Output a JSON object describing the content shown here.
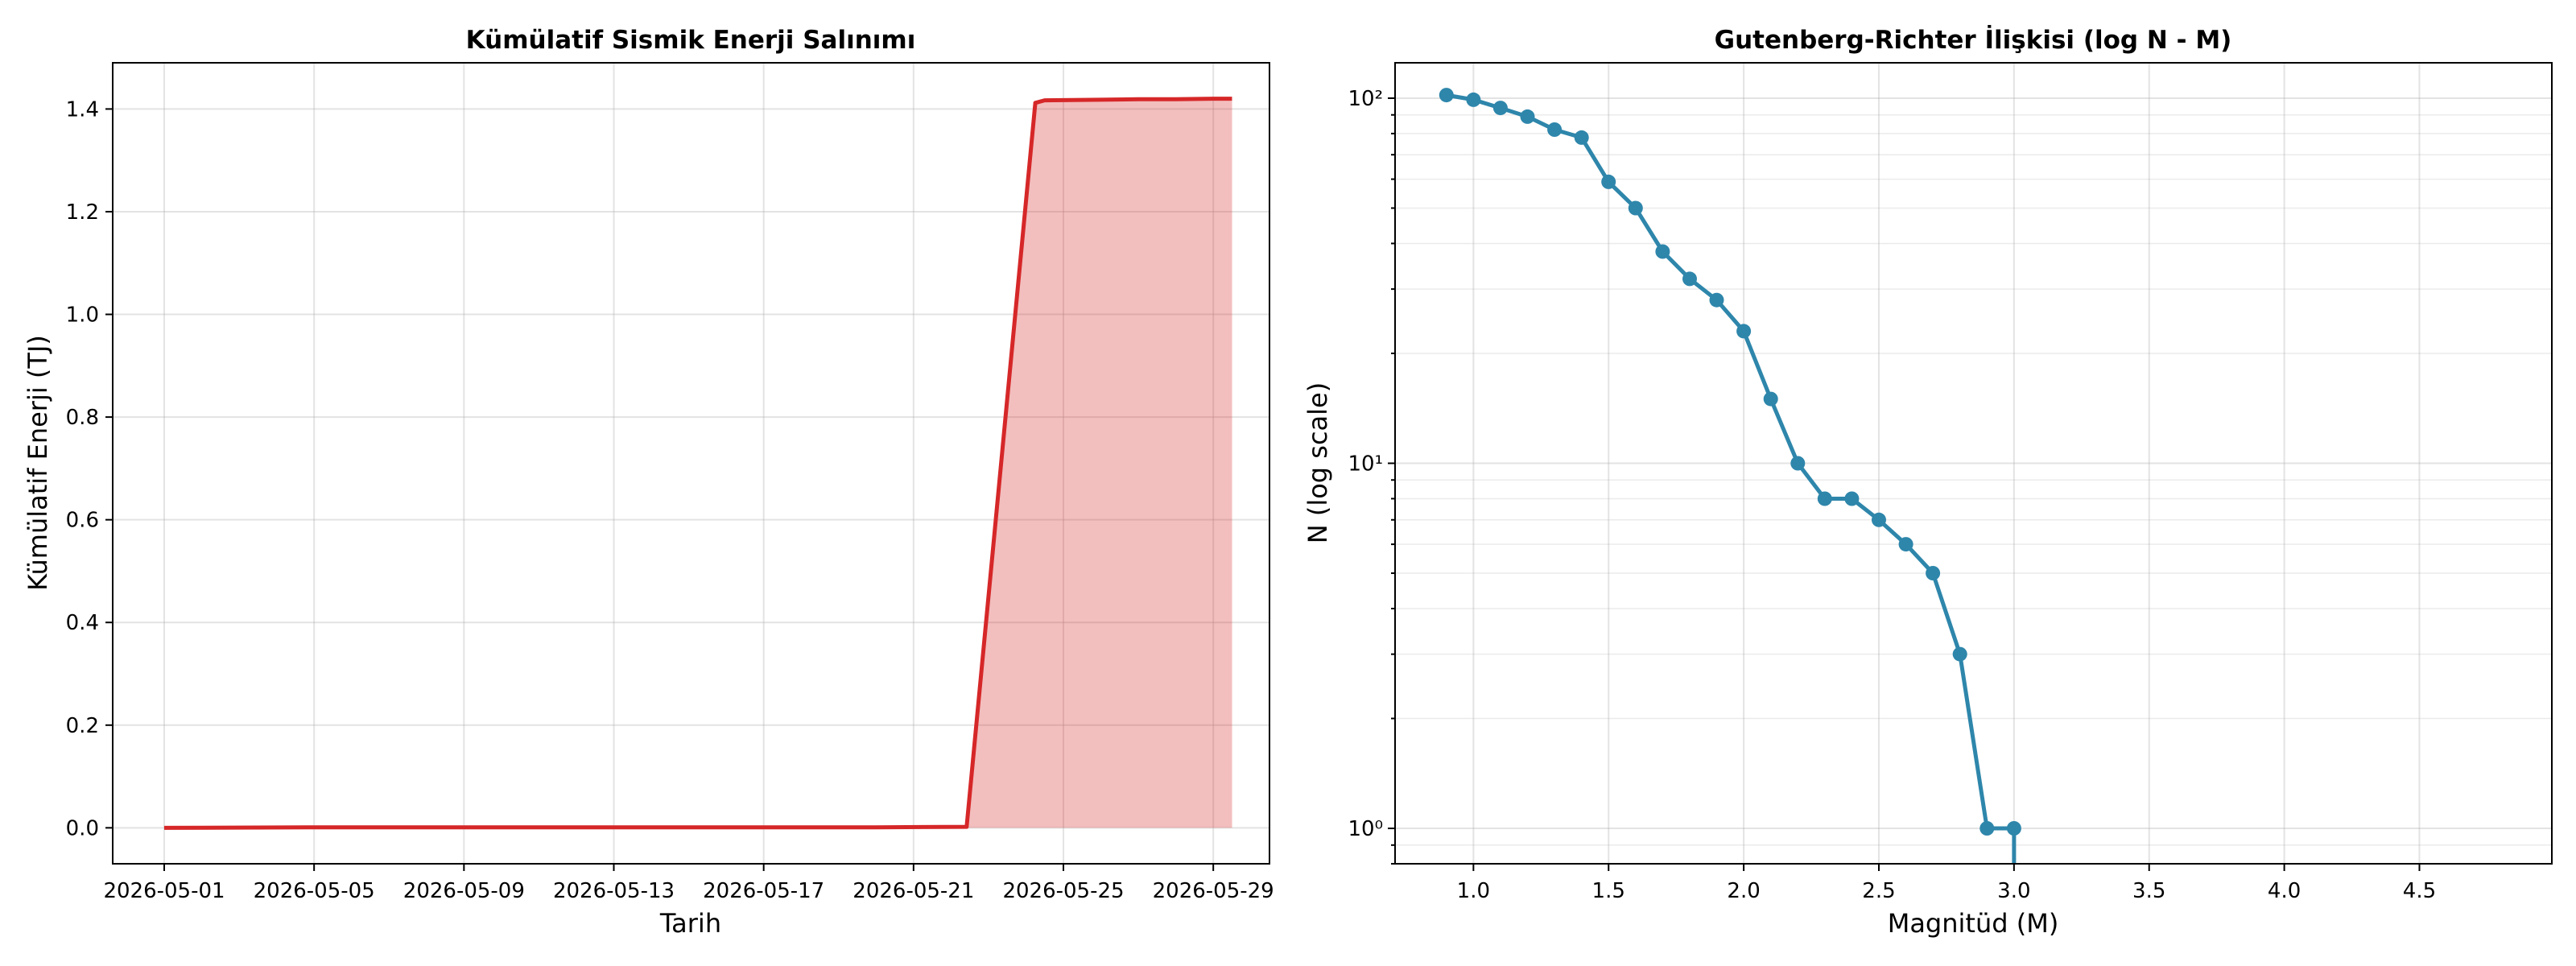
{
  "chart_data": [
    {
      "type": "area",
      "title": "Kümülatif Sismik Enerji Salınımı",
      "xlabel": "Tarih",
      "ylabel": "Kümülatif Enerji (TJ)",
      "x_ticks": [
        "2026-05-01",
        "2026-05-05",
        "2026-05-09",
        "2026-05-13",
        "2026-05-17",
        "2026-05-21",
        "2026-05-25",
        "2026-05-29"
      ],
      "x_range": [
        "2026-04-29 15:00",
        "2026-05-30 12:00"
      ],
      "y_ticks": [
        "0.0",
        "0.2",
        "0.4",
        "0.6",
        "0.8",
        "1.0",
        "1.2",
        "1.4"
      ],
      "ylim": [
        -0.07,
        1.49
      ],
      "grid": true,
      "colors": {
        "line": "#d62728",
        "fill": "#d62728"
      },
      "series": [
        {
          "x": [
            "2026-05-01 00:00",
            "2026-05-05 00:00",
            "2026-05-10 00:00",
            "2026-05-15 00:00",
            "2026-05-20 00:00",
            "2026-05-22 10:00",
            "2026-05-24 06:00",
            "2026-05-24 12:00",
            "2026-05-26 00:00",
            "2026-05-27 00:00",
            "2026-05-28 00:00",
            "2026-05-29 00:00",
            "2026-05-29 12:00"
          ],
          "y": [
            0.0,
            0.001,
            0.001,
            0.001,
            0.001,
            0.002,
            1.412,
            1.417,
            1.418,
            1.419,
            1.419,
            1.42,
            1.42
          ]
        }
      ]
    },
    {
      "type": "line",
      "title": "Gutenberg-Richter İlişkisi (log N - M)",
      "xlabel": "Magnitüd (M)",
      "ylabel": "N (log scale)",
      "x_ticks": [
        "1.0",
        "1.5",
        "2.0",
        "2.5",
        "3.0",
        "3.5",
        "4.0",
        "4.5"
      ],
      "xlim": [
        0.71,
        4.99
      ],
      "y_ticks": [
        "10⁰",
        "10¹",
        "10²"
      ],
      "ylim": [
        0.8,
        125
      ],
      "yscale": "log",
      "grid": true,
      "colors": {
        "line": "#2e86ab",
        "marker": "#2e86ab"
      },
      "series": [
        {
          "x": [
            0.9,
            1.0,
            1.1,
            1.2,
            1.3,
            1.4,
            1.5,
            1.6,
            1.7,
            1.8,
            1.9,
            2.0,
            2.1,
            2.2,
            2.3,
            2.4,
            2.5,
            2.6,
            2.7,
            2.8,
            2.9,
            3.0
          ],
          "y": [
            102,
            99,
            94,
            89,
            82,
            78,
            59,
            50,
            38,
            32,
            28,
            23,
            15,
            10,
            8,
            8,
            7,
            6,
            5,
            3,
            1,
            1
          ],
          "tail_to_axis": true
        }
      ]
    }
  ]
}
